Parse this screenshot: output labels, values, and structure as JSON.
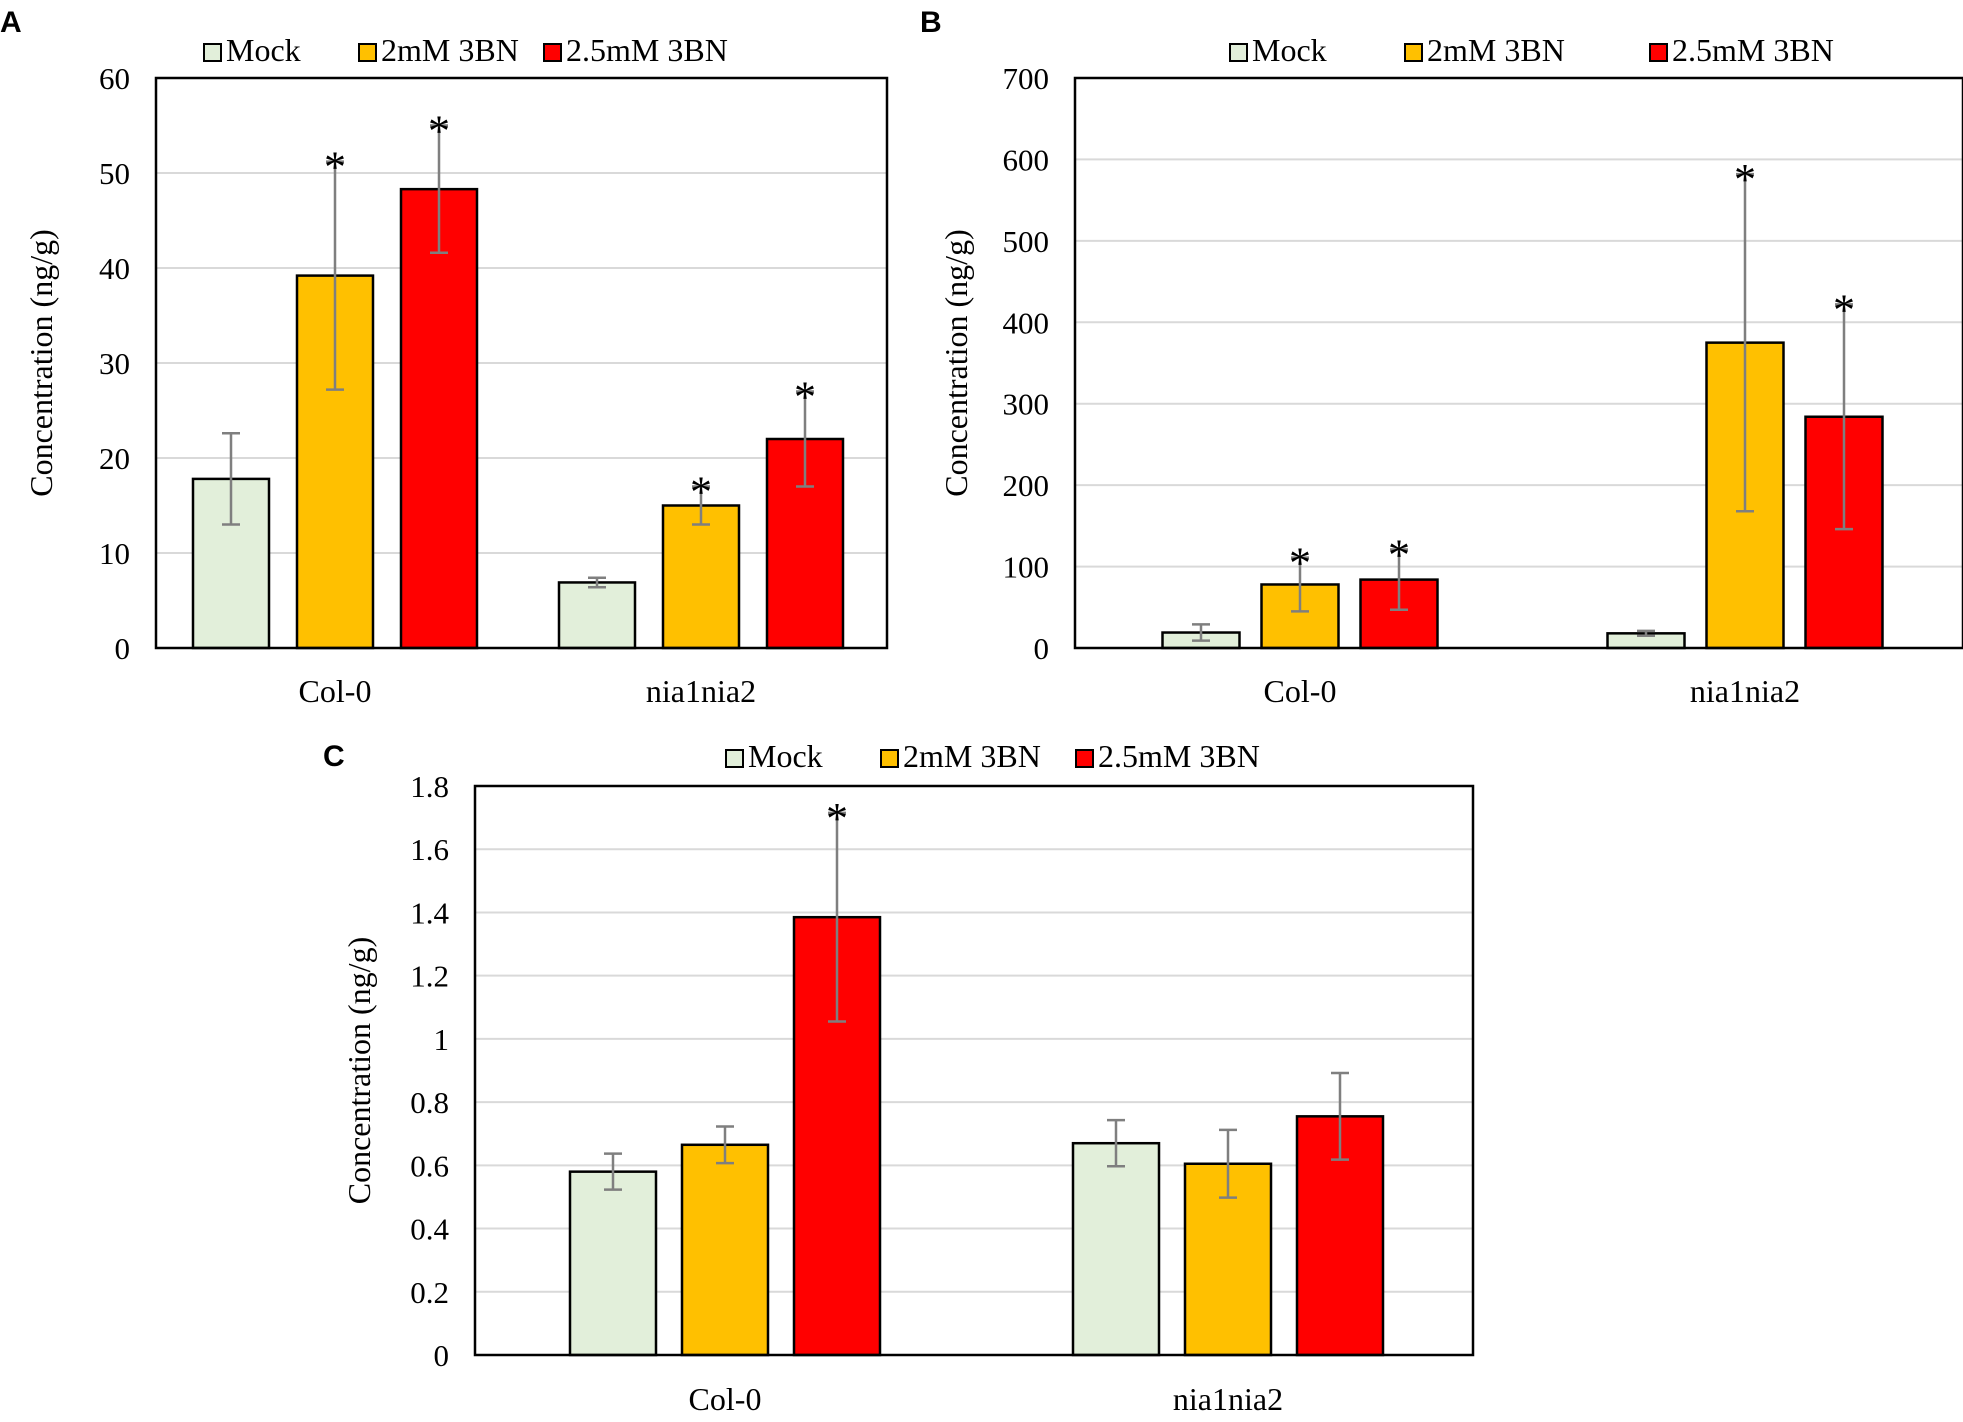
{
  "colors": {
    "Mock": "#e2efda",
    "2mM 3BN": "#ffc000",
    "2.5mM 3BN": "#ff0000",
    "grid": "#d9d9d9",
    "errorbar": "#7f7f7f"
  },
  "chart_data": [
    {
      "panel": "A",
      "type": "bar",
      "ylabel": "Concentration (ng/g)",
      "ylim": [
        0,
        60
      ],
      "yticks": [
        0,
        10,
        20,
        30,
        40,
        50,
        60
      ],
      "categories": [
        "Col-0",
        "nia1nia2"
      ],
      "legend": [
        "Mock",
        "2mM 3BN",
        "2.5mM 3BN"
      ],
      "series": [
        {
          "name": "Mock",
          "values": [
            17.8,
            6.9
          ],
          "errors": [
            4.8,
            0.5
          ],
          "marks": [
            "",
            ""
          ]
        },
        {
          "name": "2mM 3BN",
          "values": [
            39.2,
            15.0
          ],
          "errors": [
            12.0,
            2.0
          ],
          "marks": [
            "*",
            "*"
          ]
        },
        {
          "name": "2.5mM 3BN",
          "values": [
            48.3,
            22.0
          ],
          "errors": [
            6.7,
            5.0
          ],
          "marks": [
            "*",
            "*"
          ]
        }
      ]
    },
    {
      "panel": "B",
      "type": "bar",
      "ylabel": "Concentration (ng/g)",
      "ylim": [
        0,
        700
      ],
      "yticks": [
        0,
        100,
        200,
        300,
        400,
        500,
        600,
        700
      ],
      "categories": [
        "Col-0",
        "nia1nia2"
      ],
      "legend": [
        "Mock",
        "2mM 3BN",
        "2.5mM 3BN"
      ],
      "series": [
        {
          "name": "Mock",
          "values": [
            19,
            18
          ],
          "errors": [
            10,
            3
          ],
          "marks": [
            "",
            ""
          ]
        },
        {
          "name": "2mM 3BN",
          "values": [
            78,
            375
          ],
          "errors": [
            33,
            207
          ],
          "marks": [
            "*",
            "*"
          ]
        },
        {
          "name": "2.5mM 3BN",
          "values": [
            84,
            284
          ],
          "errors": [
            37,
            138
          ],
          "marks": [
            "*",
            "*"
          ]
        }
      ]
    },
    {
      "panel": "C",
      "type": "bar",
      "ylabel": "Concentration (ng/g)",
      "ylim": [
        0,
        1.8
      ],
      "yticks": [
        0,
        0.2,
        0.4,
        0.6,
        0.8,
        1,
        1.2,
        1.4,
        1.6,
        1.8
      ],
      "ytick_labels": [
        "0",
        "0.2",
        "0.4",
        "0.6",
        "0.8",
        "1",
        "1.2",
        "1.4",
        "1.6",
        "1.8"
      ],
      "categories": [
        "Col-0",
        "nia1nia2"
      ],
      "legend": [
        "Mock",
        "2mM 3BN",
        "2.5mM 3BN"
      ],
      "series": [
        {
          "name": "Mock",
          "values": [
            0.58,
            0.67
          ],
          "errors": [
            0.057,
            0.073
          ],
          "marks": [
            "",
            ""
          ]
        },
        {
          "name": "2mM 3BN",
          "values": [
            0.665,
            0.605
          ],
          "errors": [
            0.058,
            0.107
          ],
          "marks": [
            "",
            ""
          ]
        },
        {
          "name": "2.5mM 3BN",
          "values": [
            1.385,
            0.755
          ],
          "errors": [
            0.33,
            0.137
          ],
          "marks": [
            "*",
            ""
          ]
        }
      ]
    }
  ]
}
